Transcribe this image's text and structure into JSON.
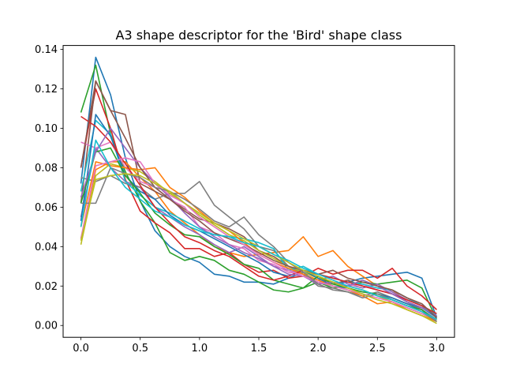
{
  "chart_data": {
    "type": "line",
    "title": "A3 shape descriptor for the 'Bird' shape class",
    "xlabel": "",
    "ylabel": "",
    "xlim": [
      -0.15,
      3.15
    ],
    "ylim": [
      -0.006,
      0.142
    ],
    "x_ticks": [
      0.0,
      0.5,
      1.0,
      1.5,
      2.0,
      2.5,
      3.0
    ],
    "x_tick_labels": [
      "0.0",
      "0.5",
      "1.0",
      "1.5",
      "2.0",
      "2.5",
      "3.0"
    ],
    "y_ticks": [
      0.0,
      0.02,
      0.04,
      0.06,
      0.08,
      0.1,
      0.12,
      0.14
    ],
    "y_tick_labels": [
      "0.00",
      "0.02",
      "0.04",
      "0.06",
      "0.08",
      "0.10",
      "0.12",
      "0.14"
    ],
    "grid": false,
    "legend": "none",
    "x": [
      0.0,
      0.125,
      0.25,
      0.375,
      0.5,
      0.625,
      0.75,
      0.875,
      1.0,
      1.125,
      1.25,
      1.375,
      1.5,
      1.625,
      1.75,
      1.875,
      2.0,
      2.125,
      2.25,
      2.375,
      2.5,
      2.625,
      2.75,
      2.875,
      3.0
    ],
    "series": [
      {
        "color": "#1f77b4",
        "values": [
          0.072,
          0.136,
          0.117,
          0.085,
          0.063,
          0.048,
          0.04,
          0.035,
          0.032,
          0.026,
          0.025,
          0.022,
          0.022,
          0.021,
          0.024,
          0.027,
          0.024,
          0.021,
          0.022,
          0.024,
          0.025,
          0.026,
          0.027,
          0.024,
          0.004
        ]
      },
      {
        "color": "#ff7f0e",
        "values": [
          0.044,
          0.079,
          0.083,
          0.083,
          0.075,
          0.068,
          0.058,
          0.052,
          0.046,
          0.04,
          0.037,
          0.035,
          0.036,
          0.037,
          0.038,
          0.045,
          0.035,
          0.038,
          0.03,
          0.025,
          0.02,
          0.018,
          0.012,
          0.008,
          0.002
        ]
      },
      {
        "color": "#2ca02c",
        "values": [
          0.108,
          0.132,
          0.097,
          0.078,
          0.063,
          0.052,
          0.037,
          0.033,
          0.035,
          0.033,
          0.028,
          0.026,
          0.022,
          0.018,
          0.017,
          0.019,
          0.022,
          0.019,
          0.02,
          0.022,
          0.021,
          0.022,
          0.023,
          0.019,
          0.003
        ]
      },
      {
        "color": "#d62728",
        "values": [
          0.08,
          0.12,
          0.1,
          0.074,
          0.058,
          0.052,
          0.047,
          0.039,
          0.039,
          0.035,
          0.037,
          0.031,
          0.027,
          0.028,
          0.024,
          0.025,
          0.029,
          0.026,
          0.028,
          0.028,
          0.024,
          0.029,
          0.02,
          0.015,
          0.008
        ]
      },
      {
        "color": "#9467bd",
        "values": [
          0.055,
          0.09,
          0.08,
          0.073,
          0.07,
          0.06,
          0.055,
          0.05,
          0.046,
          0.041,
          0.037,
          0.04,
          0.035,
          0.03,
          0.028,
          0.026,
          0.023,
          0.025,
          0.021,
          0.019,
          0.021,
          0.017,
          0.013,
          0.01,
          0.004
        ]
      },
      {
        "color": "#8c564b",
        "values": [
          0.062,
          0.124,
          0.109,
          0.107,
          0.072,
          0.068,
          0.064,
          0.059,
          0.054,
          0.052,
          0.049,
          0.045,
          0.038,
          0.035,
          0.03,
          0.027,
          0.024,
          0.021,
          0.023,
          0.02,
          0.018,
          0.016,
          0.012,
          0.009,
          0.005
        ]
      },
      {
        "color": "#e377c2",
        "values": [
          0.093,
          0.09,
          0.093,
          0.08,
          0.073,
          0.07,
          0.064,
          0.06,
          0.05,
          0.047,
          0.041,
          0.039,
          0.033,
          0.031,
          0.027,
          0.026,
          0.022,
          0.022,
          0.02,
          0.021,
          0.018,
          0.016,
          0.012,
          0.008,
          0.003
        ]
      },
      {
        "color": "#7f7f7f",
        "values": [
          0.075,
          0.073,
          0.076,
          0.072,
          0.07,
          0.064,
          0.067,
          0.067,
          0.073,
          0.061,
          0.055,
          0.049,
          0.04,
          0.038,
          0.03,
          0.026,
          0.02,
          0.019,
          0.017,
          0.015,
          0.017,
          0.014,
          0.011,
          0.008,
          0.003
        ]
      },
      {
        "color": "#bcbd22",
        "values": [
          0.041,
          0.076,
          0.082,
          0.08,
          0.078,
          0.073,
          0.067,
          0.062,
          0.056,
          0.051,
          0.046,
          0.043,
          0.038,
          0.034,
          0.03,
          0.027,
          0.024,
          0.022,
          0.02,
          0.018,
          0.015,
          0.012,
          0.009,
          0.006,
          0.002
        ]
      },
      {
        "color": "#17becf",
        "values": [
          0.068,
          0.104,
          0.097,
          0.073,
          0.066,
          0.06,
          0.057,
          0.053,
          0.049,
          0.046,
          0.045,
          0.044,
          0.042,
          0.039,
          0.028,
          0.03,
          0.026,
          0.024,
          0.022,
          0.021,
          0.019,
          0.018,
          0.014,
          0.01,
          0.005
        ]
      },
      {
        "color": "#1f77b4",
        "values": [
          0.053,
          0.107,
          0.096,
          0.076,
          0.068,
          0.064,
          0.056,
          0.051,
          0.048,
          0.044,
          0.04,
          0.036,
          0.032,
          0.027,
          0.025,
          0.028,
          0.024,
          0.02,
          0.019,
          0.017,
          0.016,
          0.014,
          0.011,
          0.009,
          0.004
        ]
      },
      {
        "color": "#ff7f0e",
        "values": [
          0.05,
          0.083,
          0.081,
          0.08,
          0.079,
          0.08,
          0.07,
          0.065,
          0.058,
          0.052,
          0.048,
          0.042,
          0.036,
          0.032,
          0.029,
          0.026,
          0.023,
          0.02,
          0.018,
          0.015,
          0.011,
          0.012,
          0.008,
          0.005,
          0.002
        ]
      },
      {
        "color": "#2ca02c",
        "values": [
          0.062,
          0.088,
          0.09,
          0.076,
          0.067,
          0.057,
          0.051,
          0.046,
          0.045,
          0.04,
          0.036,
          0.031,
          0.029,
          0.023,
          0.021,
          0.019,
          0.025,
          0.021,
          0.019,
          0.017,
          0.016,
          0.013,
          0.01,
          0.008,
          0.002
        ]
      },
      {
        "color": "#d62728",
        "values": [
          0.106,
          0.101,
          0.093,
          0.082,
          0.071,
          0.06,
          0.052,
          0.045,
          0.042,
          0.038,
          0.035,
          0.03,
          0.025,
          0.023,
          0.025,
          0.028,
          0.026,
          0.024,
          0.022,
          0.02,
          0.018,
          0.016,
          0.013,
          0.01,
          0.006
        ]
      },
      {
        "color": "#9467bd",
        "values": [
          0.065,
          0.088,
          0.1,
          0.09,
          0.08,
          0.072,
          0.065,
          0.057,
          0.05,
          0.045,
          0.041,
          0.037,
          0.034,
          0.03,
          0.026,
          0.025,
          0.021,
          0.022,
          0.02,
          0.023,
          0.02,
          0.016,
          0.012,
          0.009,
          0.005
        ]
      },
      {
        "color": "#8c564b",
        "values": [
          0.08,
          0.124,
          0.109,
          0.095,
          0.08,
          0.07,
          0.064,
          0.058,
          0.053,
          0.047,
          0.044,
          0.041,
          0.037,
          0.033,
          0.03,
          0.028,
          0.026,
          0.028,
          0.024,
          0.022,
          0.02,
          0.018,
          0.014,
          0.011,
          0.004
        ]
      },
      {
        "color": "#e377c2",
        "values": [
          0.044,
          0.081,
          0.083,
          0.085,
          0.083,
          0.072,
          0.066,
          0.062,
          0.055,
          0.05,
          0.045,
          0.041,
          0.036,
          0.032,
          0.028,
          0.025,
          0.022,
          0.02,
          0.018,
          0.016,
          0.014,
          0.012,
          0.009,
          0.006,
          0.003
        ]
      },
      {
        "color": "#7f7f7f",
        "values": [
          0.062,
          0.062,
          0.08,
          0.077,
          0.075,
          0.07,
          0.068,
          0.064,
          0.059,
          0.053,
          0.05,
          0.055,
          0.046,
          0.04,
          0.032,
          0.027,
          0.021,
          0.018,
          0.017,
          0.014,
          0.016,
          0.013,
          0.01,
          0.007,
          0.002
        ]
      },
      {
        "color": "#bcbd22",
        "values": [
          0.043,
          0.074,
          0.076,
          0.077,
          0.076,
          0.072,
          0.068,
          0.062,
          0.057,
          0.052,
          0.048,
          0.044,
          0.04,
          0.036,
          0.032,
          0.028,
          0.025,
          0.022,
          0.019,
          0.016,
          0.013,
          0.011,
          0.008,
          0.005,
          0.001
        ]
      },
      {
        "color": "#17becf",
        "values": [
          0.05,
          0.094,
          0.08,
          0.07,
          0.064,
          0.058,
          0.055,
          0.051,
          0.048,
          0.046,
          0.045,
          0.042,
          0.04,
          0.036,
          0.033,
          0.029,
          0.026,
          0.023,
          0.02,
          0.018,
          0.015,
          0.013,
          0.01,
          0.007,
          0.003
        ]
      }
    ]
  }
}
